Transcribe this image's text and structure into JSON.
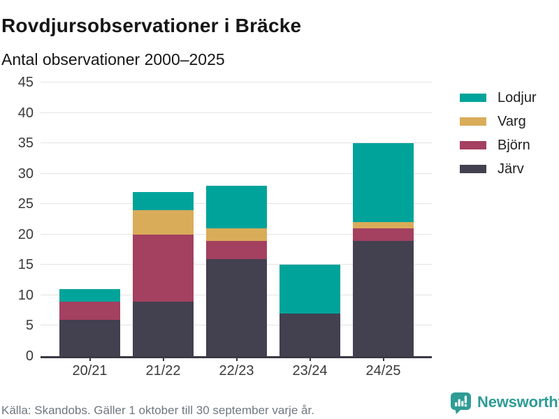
{
  "header": {
    "title": "Rovdjursobservationer i Bräcke",
    "subtitle": "Antal observationer 2000–2025"
  },
  "chart_data": {
    "type": "bar",
    "stacked": true,
    "title": "Rovdjursobservationer i Bräcke",
    "subtitle": "Antal observationer 2000–2025",
    "categories": [
      "20/21",
      "21/22",
      "22/23",
      "23/24",
      "24/25"
    ],
    "series": [
      {
        "name": "Järv",
        "color": "#434050",
        "values": [
          6,
          9,
          16,
          7,
          19
        ]
      },
      {
        "name": "Björn",
        "color": "#a44060",
        "values": [
          3,
          11,
          3,
          0,
          2
        ]
      },
      {
        "name": "Varg",
        "color": "#d9ac59",
        "values": [
          0,
          4,
          2,
          0,
          1
        ]
      },
      {
        "name": "Lodjur",
        "color": "#00a39a",
        "values": [
          2,
          3,
          7,
          8,
          13
        ]
      }
    ],
    "totals": [
      11,
      27,
      28,
      15,
      35
    ],
    "legend": [
      "Lodjur",
      "Varg",
      "Björn",
      "Järv"
    ],
    "legend_position": "right",
    "xlabel": "",
    "ylabel": "Antal observationer",
    "ylim": [
      0,
      45
    ],
    "ytick_step": 5,
    "yticks": [
      0,
      5,
      10,
      15,
      20,
      25,
      30,
      35,
      40,
      45
    ],
    "grid": true
  },
  "footer": {
    "source": "Källa: Skandobs. Gäller 1 oktober till 30 september varje år."
  },
  "branding": {
    "logo_text": "Newsworthy",
    "logo_color": "#2e9c95",
    "icon": "newsworthy-chart-bubble-icon"
  }
}
